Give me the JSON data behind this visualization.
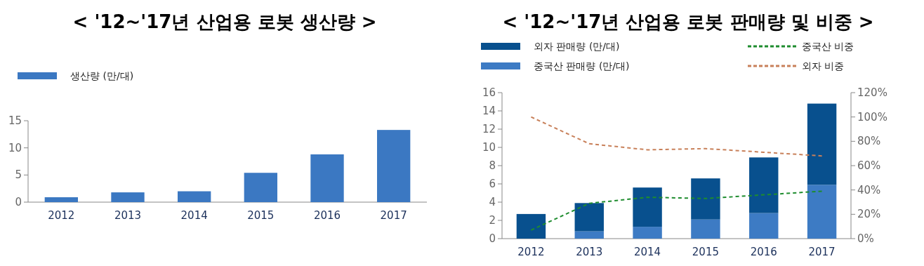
{
  "chart_data": [
    {
      "type": "bar",
      "title": "< '12~'17년 산업용 로봇 생산량 >",
      "categories": [
        "2012",
        "2013",
        "2014",
        "2015",
        "2016",
        "2017"
      ],
      "series": [
        {
          "name": "생산량 (만/대)",
          "color": "#3b78c2",
          "values": [
            0.9,
            1.8,
            2.0,
            5.4,
            8.8,
            13.3
          ]
        }
      ],
      "ylim": [
        0,
        15
      ],
      "yticks": [
        0,
        5,
        10,
        15
      ],
      "legend": "top left",
      "grid": false
    },
    {
      "type": "bar",
      "title": "< '12~'17년 산업용 로봇 판매량 및 비중 >",
      "categories": [
        "2012",
        "2013",
        "2014",
        "2015",
        "2016",
        "2017"
      ],
      "stacked": true,
      "series": [
        {
          "name": "중국산 판매량 (만/대)",
          "color": "#3d7bc4",
          "values": [
            0,
            0.8,
            1.3,
            2.1,
            2.8,
            5.9
          ]
        },
        {
          "name": "외자 판매량 (만/대)",
          "color": "#08508e",
          "values": [
            2.7,
            3.1,
            4.3,
            4.5,
            6.1,
            8.9
          ]
        },
        {
          "type": "line",
          "axis": "y2",
          "name": "중국산 비중",
          "color": "#1e8c2e",
          "line_style": "dashed",
          "values": [
            7,
            29,
            34,
            33,
            36,
            39
          ]
        },
        {
          "type": "line",
          "axis": "y2",
          "name": "외자 비중",
          "color": "#c8805a",
          "line_style": "dashed",
          "values": [
            100,
            78,
            73,
            74,
            71,
            68
          ]
        }
      ],
      "ylim": [
        0,
        16
      ],
      "yticks": [
        0,
        2,
        4,
        6,
        8,
        10,
        12,
        14,
        16
      ],
      "y2lim": [
        0,
        120
      ],
      "y2ticks": [
        {
          "value": 0,
          "label": "0%"
        },
        {
          "value": 20,
          "label": "20%"
        },
        {
          "value": 40,
          "label": "40%"
        },
        {
          "value": 60,
          "label": "60%"
        },
        {
          "value": 80,
          "label": "80%"
        },
        {
          "value": 100,
          "label": "100%"
        },
        {
          "value": 120,
          "label": "120%"
        }
      ],
      "legend": "top",
      "grid": false
    }
  ]
}
